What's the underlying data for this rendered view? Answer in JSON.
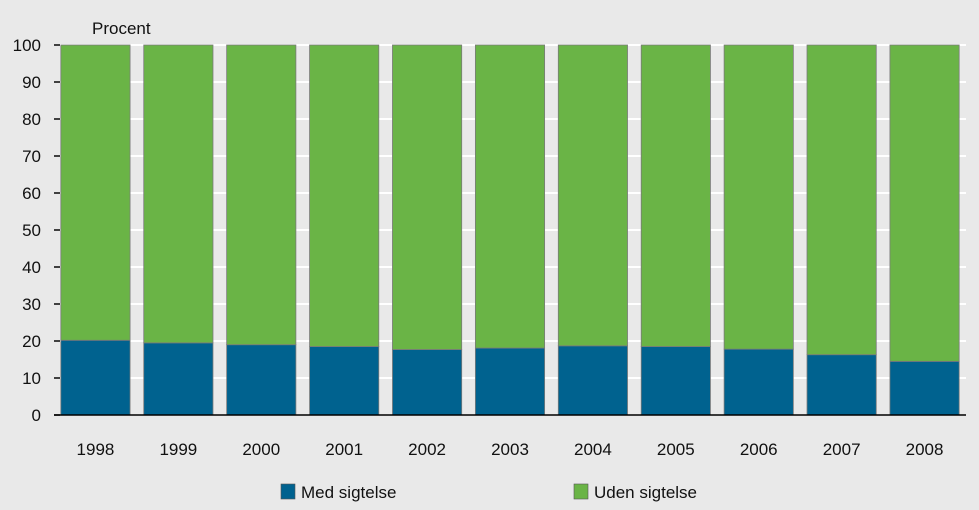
{
  "chart_data": {
    "type": "bar",
    "stacked": true,
    "percent_stacked": true,
    "ylabel": "Procent",
    "ylim": [
      0,
      100
    ],
    "yticks": [
      0,
      10,
      20,
      30,
      40,
      50,
      60,
      70,
      80,
      90,
      100
    ],
    "grid": true,
    "legend_position": "bottom",
    "categories": [
      "1998",
      "1999",
      "2000",
      "2001",
      "2002",
      "2003",
      "2004",
      "2005",
      "2006",
      "2007",
      "2008"
    ],
    "series": [
      {
        "name": "Med sigtelse",
        "color": "#00628f",
        "values": [
          20.2,
          19.5,
          19.0,
          18.5,
          17.7,
          18.1,
          18.7,
          18.5,
          17.8,
          16.3,
          14.5
        ]
      },
      {
        "name": "Uden sigtelse",
        "color": "#6ab446",
        "values": [
          79.8,
          80.5,
          81.0,
          81.5,
          82.3,
          81.9,
          81.3,
          81.5,
          82.2,
          83.7,
          85.5
        ]
      }
    ]
  }
}
